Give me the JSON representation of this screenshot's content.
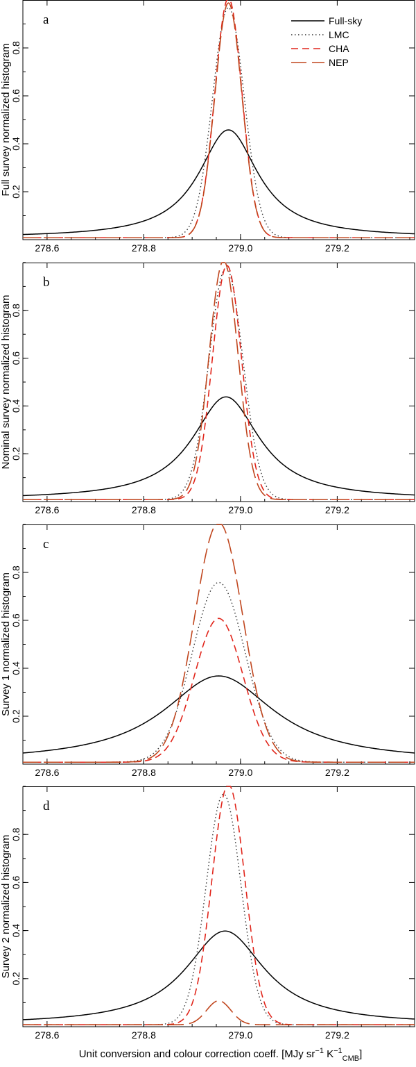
{
  "colors": {
    "Full-sky": "#000000",
    "LMC": "#333333",
    "CHA": "#e1251b",
    "NEP": "#c0461e"
  },
  "x_axis_title": {
    "main": "Unit conversion and colour correction coeff.  [MJy sr",
    "sup1": "−1",
    "mid": " K",
    "sup2": "−1",
    "sub": "CMB",
    "end": "]"
  },
  "chart_data": [
    {
      "type": "line",
      "panel_label": "a",
      "ylabel": "Full survey normalized histogram",
      "xlim": [
        278.55,
        279.36
      ],
      "ylim": [
        0,
        1.0
      ],
      "xticks": [
        "278.6",
        "278.8",
        "279.0",
        "279.2"
      ],
      "yticks": [
        "0.2",
        "0.4",
        "0.6",
        "0.8"
      ],
      "legend": [
        "Full-sky",
        "LMC",
        "CHA",
        "NEP"
      ],
      "series": [
        {
          "name": "Full-sky",
          "center": 278.975,
          "peak": 0.45,
          "width": 0.075,
          "shape": "lorentz"
        },
        {
          "name": "LMC",
          "center": 278.975,
          "peak": 0.96,
          "width": 0.033,
          "shape": "gauss"
        },
        {
          "name": "CHA",
          "center": 278.975,
          "peak": 1.0,
          "width": 0.028,
          "shape": "gauss"
        },
        {
          "name": "NEP",
          "center": 278.975,
          "peak": 0.98,
          "width": 0.028,
          "shape": "gauss"
        }
      ]
    },
    {
      "type": "line",
      "panel_label": "b",
      "ylabel": "Nominal survey normalized histogram",
      "xlim": [
        278.55,
        279.36
      ],
      "ylim": [
        0,
        1.0
      ],
      "xticks": [
        "278.6",
        "278.8",
        "279.0",
        "279.2"
      ],
      "yticks": [
        "0.2",
        "0.4",
        "0.6",
        "0.8"
      ],
      "series": [
        {
          "name": "Full-sky",
          "center": 278.97,
          "peak": 0.43,
          "width": 0.085,
          "shape": "lorentz"
        },
        {
          "name": "LMC",
          "center": 278.97,
          "peak": 0.97,
          "width": 0.035,
          "shape": "gauss"
        },
        {
          "name": "CHA",
          "center": 278.972,
          "peak": 0.98,
          "width": 0.03,
          "shape": "gauss"
        },
        {
          "name": "NEP",
          "center": 278.965,
          "peak": 1.0,
          "width": 0.03,
          "shape": "gauss"
        }
      ]
    },
    {
      "type": "line",
      "panel_label": "c",
      "ylabel": "Survey 1 normalized histogram",
      "xlim": [
        278.55,
        279.36
      ],
      "ylim": [
        0,
        1.0
      ],
      "xticks": [
        "278.6",
        "278.8",
        "279.0",
        "279.2"
      ],
      "yticks": [
        "0.2",
        "0.4",
        "0.6",
        "0.8"
      ],
      "series": [
        {
          "name": "Full-sky",
          "center": 278.955,
          "peak": 0.36,
          "width": 0.14,
          "shape": "lorentz"
        },
        {
          "name": "LMC",
          "center": 278.955,
          "peak": 0.75,
          "width": 0.055,
          "shape": "gauss"
        },
        {
          "name": "CHA",
          "center": 278.955,
          "peak": 0.6,
          "width": 0.05,
          "shape": "gauss"
        },
        {
          "name": "NEP",
          "center": 278.955,
          "peak": 1.0,
          "width": 0.05,
          "shape": "gauss"
        }
      ]
    },
    {
      "type": "line",
      "panel_label": "d",
      "ylabel": "Survey 2 normalized histogram",
      "xlim": [
        278.55,
        279.36
      ],
      "ylim": [
        0,
        1.0
      ],
      "xticks": [
        "278.6",
        "278.8",
        "279.0",
        "279.2"
      ],
      "yticks": [
        "0.2",
        "0.4",
        "0.6",
        "0.8"
      ],
      "series": [
        {
          "name": "Full-sky",
          "center": 278.968,
          "peak": 0.39,
          "width": 0.1,
          "shape": "lorentz"
        },
        {
          "name": "LMC",
          "center": 278.965,
          "peak": 0.96,
          "width": 0.036,
          "shape": "gauss"
        },
        {
          "name": "CHA",
          "center": 278.975,
          "peak": 1.0,
          "width": 0.034,
          "shape": "gauss"
        },
        {
          "name": "NEP",
          "center": 278.955,
          "peak": 0.1,
          "width": 0.025,
          "shape": "gauss"
        }
      ]
    }
  ]
}
